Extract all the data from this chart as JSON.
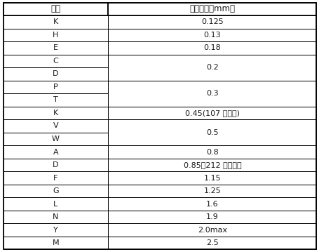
{
  "header": [
    "代码",
    "产品厚度（mm）"
  ],
  "rows": [
    {
      "code": "K",
      "thickness": "0.125",
      "span": 1
    },
    {
      "code": "H",
      "thickness": "0.13",
      "span": 1
    },
    {
      "code": "E",
      "thickness": "0.18",
      "span": 1
    },
    {
      "code": "C",
      "thickness": "0.2",
      "span": 2
    },
    {
      "code": "D",
      "thickness": "",
      "span": 0
    },
    {
      "code": "P",
      "thickness": "0.3",
      "span": 2
    },
    {
      "code": "T",
      "thickness": "",
      "span": 0
    },
    {
      "code": "K",
      "thickness": "0.45(107 型以上)",
      "span": 1
    },
    {
      "code": "V",
      "thickness": "0.5",
      "span": 2
    },
    {
      "code": "W",
      "thickness": "",
      "span": 0
    },
    {
      "code": "A",
      "thickness": "0.8",
      "span": 1
    },
    {
      "code": "D",
      "thickness": "0.85（212 型以上）",
      "span": 1
    },
    {
      "code": "F",
      "thickness": "1.15",
      "span": 1
    },
    {
      "code": "G",
      "thickness": "1.25",
      "span": 1
    },
    {
      "code": "L",
      "thickness": "1.6",
      "span": 1
    },
    {
      "code": "N",
      "thickness": "1.9",
      "span": 1
    },
    {
      "code": "Y",
      "thickness": "2.0max",
      "span": 1
    },
    {
      "code": "M",
      "thickness": "2.5",
      "span": 1
    }
  ],
  "col_split": 0.335,
  "bg_color": "#ffffff",
  "border_color": "#000000",
  "text_color": "#1a1a1a",
  "header_fontsize": 8.5,
  "cell_fontsize": 8.0,
  "lw_outer": 1.2,
  "lw_inner": 0.7
}
